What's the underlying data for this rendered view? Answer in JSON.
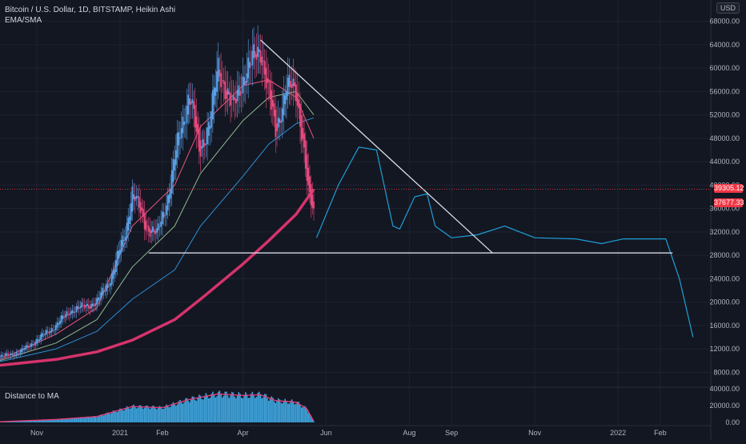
{
  "header": {
    "title": "Bitcoin / U.S. Dollar, 1D, BITSTAMP, Heikin Ashi",
    "indicator": "EMA/SMA",
    "currency": "USD"
  },
  "lower_pane": {
    "label": "Distance to MA"
  },
  "price_tags": [
    {
      "value": "39305.12",
      "color": "#f23645"
    },
    {
      "value": "37677.33",
      "color": "#f23645"
    }
  ],
  "colors": {
    "background": "#131722",
    "grid": "#1f2330",
    "candle_up": "#5aa0e6",
    "candle_down": "#e84a7f",
    "ema_fast": "#e8557e",
    "ema_mid": "#8fb98f",
    "ema_slow": "#2d8fd6",
    "sma_long": "#d6336c",
    "projection": "#1f9fd6",
    "trendline": "#d9d9e6",
    "distance_line": "#e83e78",
    "distance_bars": "#3da0d8"
  },
  "chart_data": {
    "type": "line",
    "ylim": [
      6000,
      70000
    ],
    "y_ticks": [
      8000,
      12000,
      16000,
      20000,
      24000,
      28000,
      32000,
      36000,
      40000,
      44000,
      48000,
      52000,
      56000,
      60000,
      64000,
      68000
    ],
    "x_ticks": [
      {
        "label": "Nov",
        "date": "2020-11-01"
      },
      {
        "label": "2021",
        "date": "2021-01-01"
      },
      {
        "label": "Feb",
        "date": "2021-02-01"
      },
      {
        "label": "Apr",
        "date": "2021-04-01"
      },
      {
        "label": "Jun",
        "date": "2021-06-01"
      },
      {
        "label": "Aug",
        "date": "2021-08-01"
      },
      {
        "label": "Sep",
        "date": "2021-09-01"
      },
      {
        "label": "Nov",
        "date": "2021-11-01"
      },
      {
        "label": "2022",
        "date": "2022-01-01"
      },
      {
        "label": "Feb",
        "date": "2022-02-01"
      }
    ],
    "xlim": [
      "2020-10-05",
      "2022-03-10"
    ],
    "candles_heikin_ashi_close": [
      [
        "2020-10-05",
        10600
      ],
      [
        "2020-10-20",
        11500
      ],
      [
        "2020-11-01",
        13500
      ],
      [
        "2020-11-15",
        16000
      ],
      [
        "2020-11-25",
        18500
      ],
      [
        "2020-12-05",
        19200
      ],
      [
        "2020-12-15",
        20000
      ],
      [
        "2020-12-25",
        24000
      ],
      [
        "2021-01-05",
        32000
      ],
      [
        "2021-01-10",
        39000
      ],
      [
        "2021-01-20",
        33000
      ],
      [
        "2021-01-28",
        31500
      ],
      [
        "2021-02-05",
        38000
      ],
      [
        "2021-02-12",
        47000
      ],
      [
        "2021-02-21",
        56000
      ],
      [
        "2021-02-28",
        45500
      ],
      [
        "2021-03-08",
        51000
      ],
      [
        "2021-03-14",
        60000
      ],
      [
        "2021-03-25",
        53000
      ],
      [
        "2021-04-01",
        58500
      ],
      [
        "2021-04-14",
        63500
      ],
      [
        "2021-04-25",
        49000
      ],
      [
        "2021-05-03",
        57000
      ],
      [
        "2021-05-10",
        56000
      ],
      [
        "2021-05-15",
        48000
      ],
      [
        "2021-05-19",
        38500
      ],
      [
        "2021-05-23",
        35000
      ]
    ],
    "series": [
      {
        "type": "line",
        "values": [
          [
            "2020-10-05",
            10200
          ],
          [
            "2020-11-15",
            14500
          ],
          [
            "2020-12-15",
            19000
          ],
          [
            "2021-01-10",
            33000
          ],
          [
            "2021-02-10",
            40000
          ],
          [
            "2021-03-01",
            50000
          ],
          [
            "2021-04-01",
            57000
          ],
          [
            "2021-04-20",
            58000
          ],
          [
            "2021-05-10",
            55000
          ],
          [
            "2021-05-23",
            48000
          ]
        ]
      },
      {
        "type": "line",
        "values": [
          [
            "2020-10-05",
            10000
          ],
          [
            "2020-11-15",
            13000
          ],
          [
            "2020-12-15",
            17000
          ],
          [
            "2021-01-10",
            26000
          ],
          [
            "2021-02-10",
            33000
          ],
          [
            "2021-03-01",
            42000
          ],
          [
            "2021-04-01",
            51000
          ],
          [
            "2021-04-20",
            55000
          ],
          [
            "2021-05-10",
            56000
          ],
          [
            "2021-05-23",
            52000
          ]
        ]
      },
      {
        "type": "line",
        "values": [
          [
            "2020-10-05",
            9800
          ],
          [
            "2020-11-15",
            12000
          ],
          [
            "2020-12-15",
            15000
          ],
          [
            "2021-01-10",
            20500
          ],
          [
            "2021-02-10",
            25500
          ],
          [
            "2021-03-01",
            33000
          ],
          [
            "2021-04-01",
            41500
          ],
          [
            "2021-04-20",
            47000
          ],
          [
            "2021-05-10",
            50500
          ],
          [
            "2021-05-23",
            51500
          ]
        ]
      },
      {
        "type": "line",
        "values": [
          [
            "2020-10-05",
            9200
          ],
          [
            "2020-11-15",
            10200
          ],
          [
            "2020-12-15",
            11500
          ],
          [
            "2021-01-10",
            13500
          ],
          [
            "2021-02-10",
            17000
          ],
          [
            "2021-03-01",
            20500
          ],
          [
            "2021-04-01",
            26500
          ],
          [
            "2021-04-20",
            30500
          ],
          [
            "2021-05-10",
            35000
          ],
          [
            "2021-05-23",
            39300
          ]
        ]
      },
      {
        "type": "line",
        "values": [
          [
            "2021-05-25",
            31000
          ],
          [
            "2021-06-10",
            40000
          ],
          [
            "2021-06-25",
            46500
          ],
          [
            "2021-07-08",
            46000
          ],
          [
            "2021-07-20",
            33000
          ],
          [
            "2021-07-25",
            32500
          ],
          [
            "2021-08-05",
            38000
          ],
          [
            "2021-08-14",
            38500
          ],
          [
            "2021-08-20",
            33000
          ],
          [
            "2021-09-01",
            31000
          ],
          [
            "2021-09-20",
            31500
          ],
          [
            "2021-10-10",
            33000
          ],
          [
            "2021-11-01",
            31000
          ],
          [
            "2021-12-01",
            30800
          ],
          [
            "2021-12-20",
            30000
          ],
          [
            "2022-01-05",
            30800
          ],
          [
            "2022-02-05",
            30800
          ],
          [
            "2022-02-15",
            24000
          ],
          [
            "2022-02-25",
            14000
          ]
        ]
      }
    ],
    "trendlines": [
      {
        "from": [
          "2021-04-14",
          64800
        ],
        "to": [
          "2021-10-01",
          28400
        ]
      },
      {
        "from": [
          "2021-01-22",
          28400
        ],
        "to": [
          "2022-02-10",
          28400
        ]
      }
    ],
    "distance_to_ma": {
      "ylim": [
        0,
        40000
      ],
      "y_ticks": [
        0,
        20000,
        40000
      ],
      "values": [
        [
          "2020-10-05",
          800
        ],
        [
          "2020-11-15",
          3500
        ],
        [
          "2020-12-15",
          7000
        ],
        [
          "2021-01-10",
          19000
        ],
        [
          "2021-02-01",
          17500
        ],
        [
          "2021-02-20",
          27000
        ],
        [
          "2021-03-14",
          34000
        ],
        [
          "2021-04-01",
          32000
        ],
        [
          "2021-04-14",
          33000
        ],
        [
          "2021-04-25",
          26000
        ],
        [
          "2021-05-10",
          24000
        ],
        [
          "2021-05-18",
          16000
        ],
        [
          "2021-05-23",
          1200
        ]
      ]
    }
  }
}
